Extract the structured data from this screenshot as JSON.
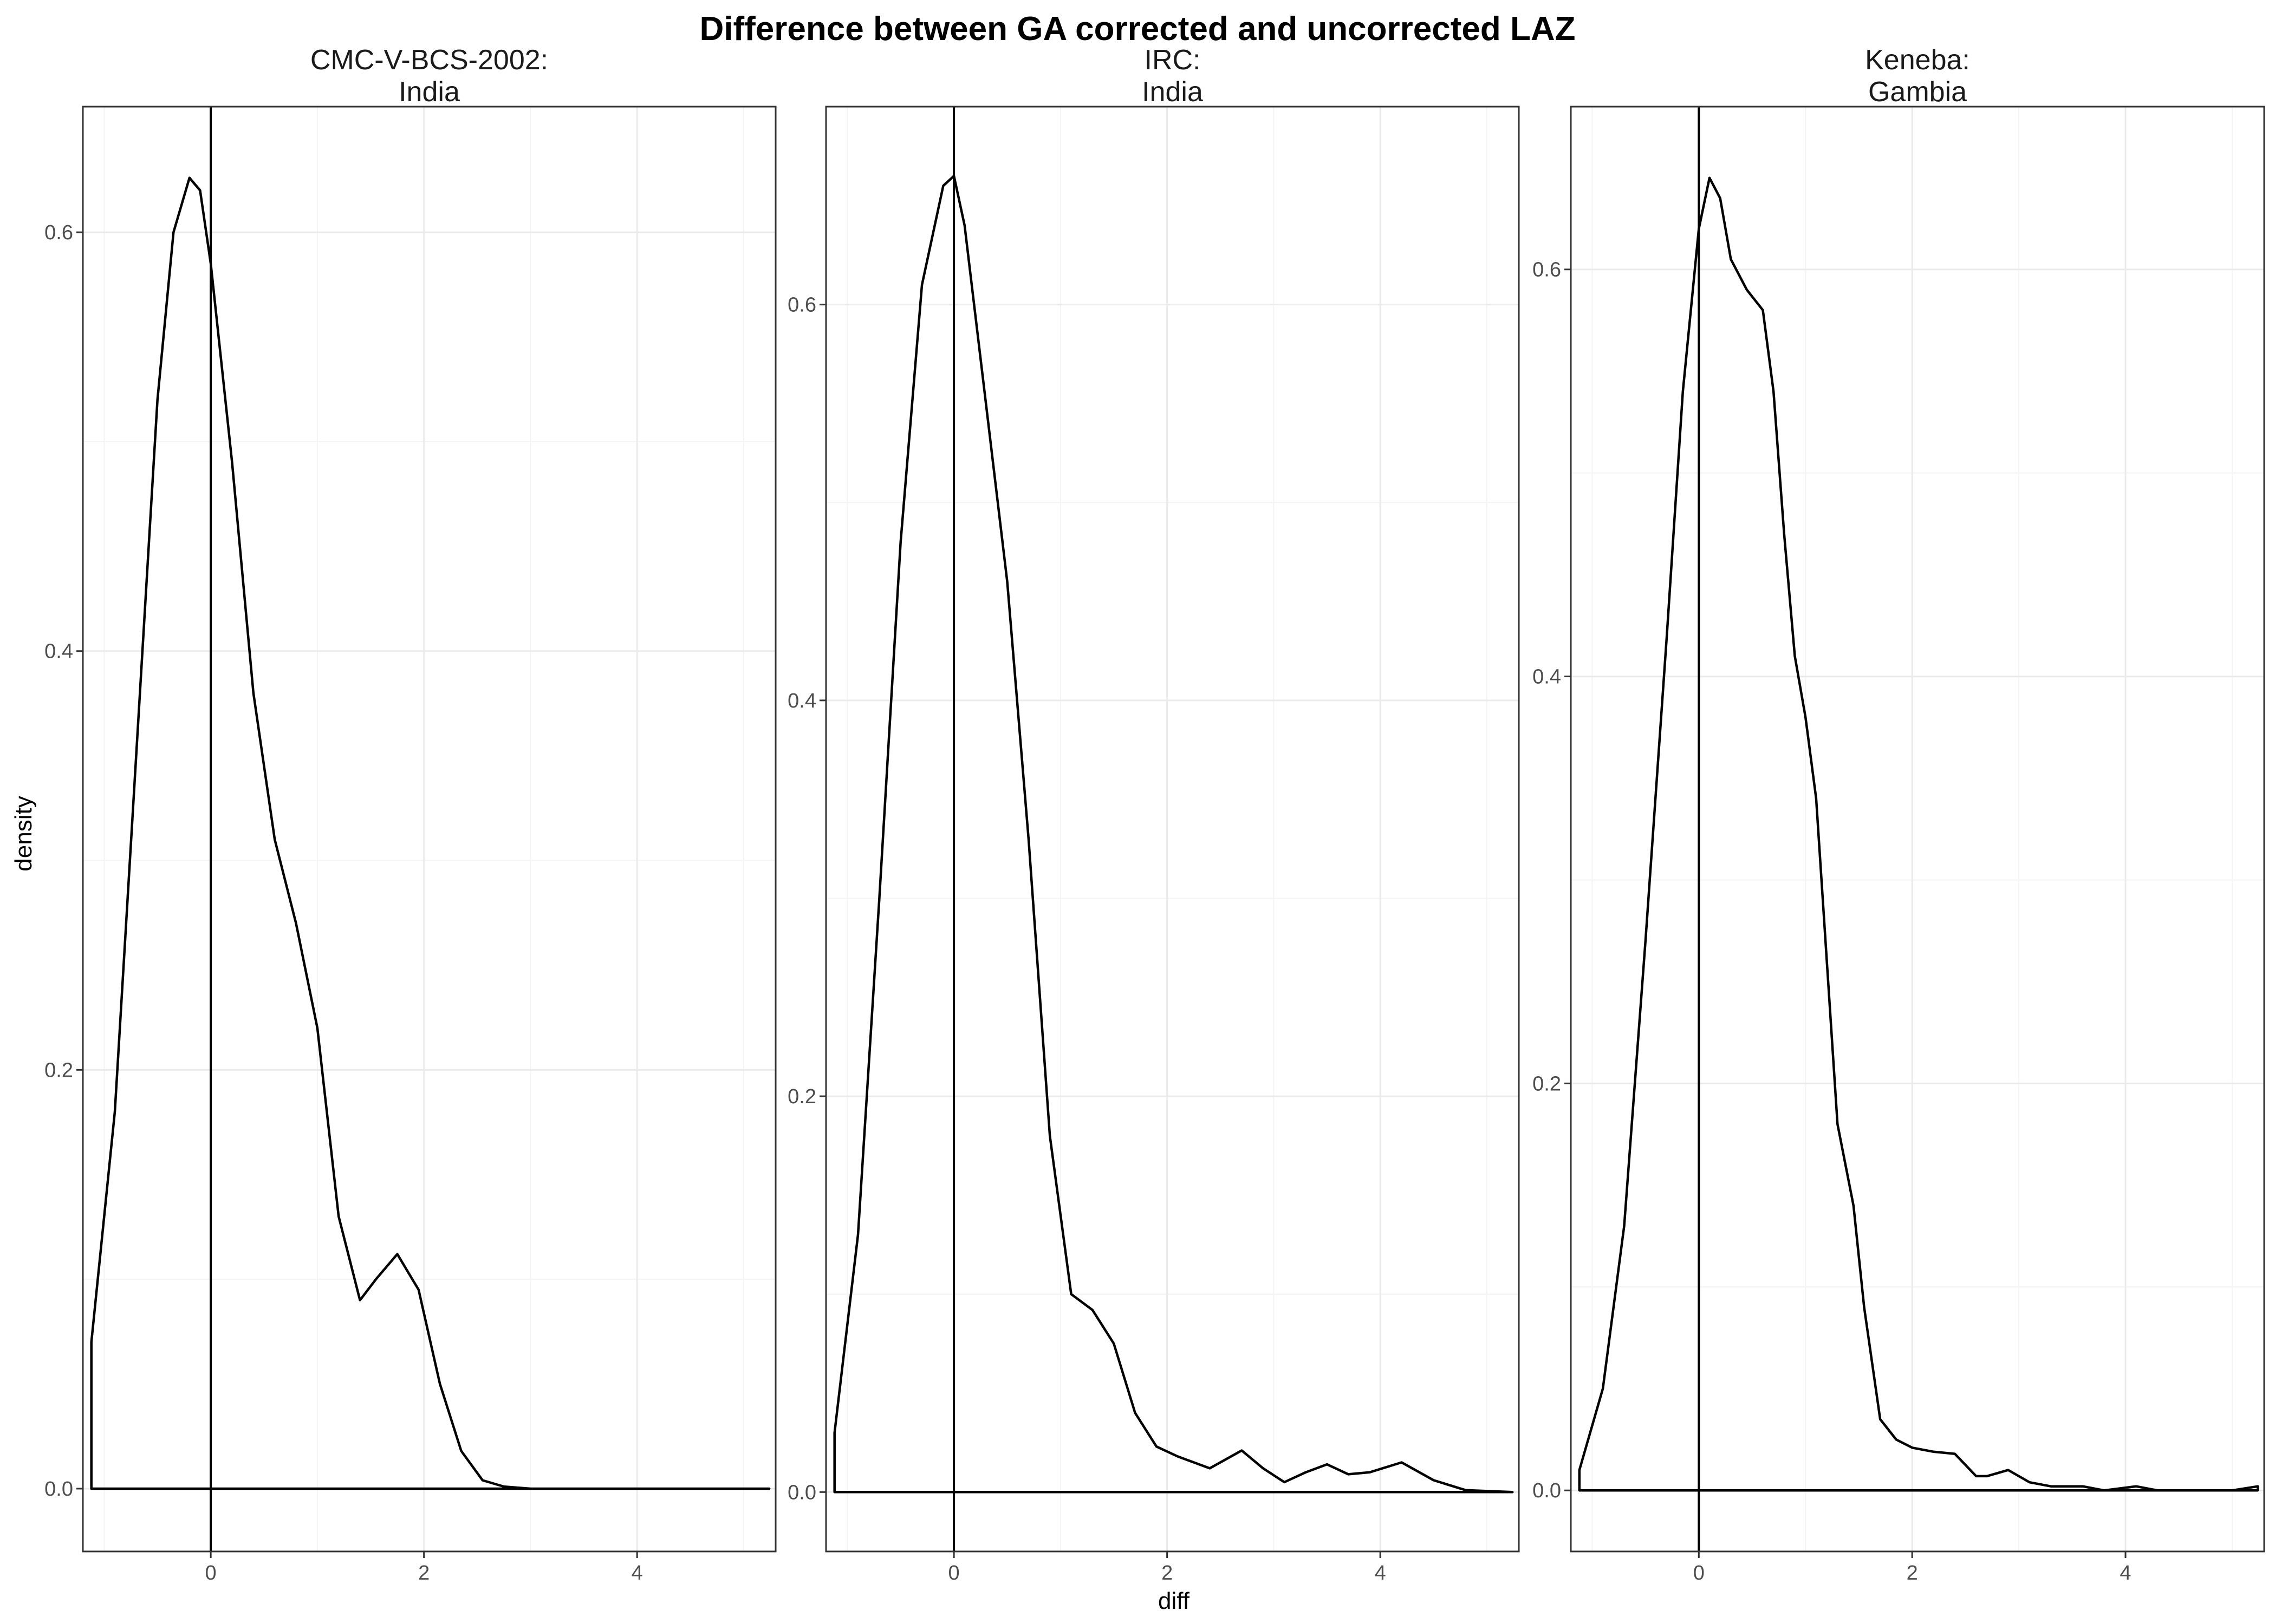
{
  "chart_data": {
    "type": "line",
    "title": "Difference between GA corrected and uncorrected LAZ",
    "xlabel": "diff",
    "ylabel": "density",
    "xlim": [
      -1.2,
      5.3
    ],
    "vline_x": 0,
    "x_ticks": [
      0,
      2,
      4
    ],
    "grid": true,
    "panels": [
      {
        "strip_line1": "CMC-V-BCS-2002:",
        "strip_line2": "India",
        "ylim": [
          -0.03,
          0.66
        ],
        "y_ticks": [
          0.0,
          0.2,
          0.4,
          0.6
        ],
        "y_tick_labels": [
          "0.0",
          "0.2",
          "0.4",
          "0.6"
        ],
        "x": [
          -1.12,
          -1.12,
          -0.9,
          -0.7,
          -0.5,
          -0.35,
          -0.2,
          -0.1,
          0.0,
          0.2,
          0.4,
          0.6,
          0.8,
          1.0,
          1.2,
          1.4,
          1.55,
          1.75,
          1.95,
          2.15,
          2.35,
          2.55,
          2.75,
          3.0,
          4.0,
          5.24
        ],
        "y": [
          0.0,
          0.07,
          0.18,
          0.35,
          0.52,
          0.6,
          0.626,
          0.62,
          0.585,
          0.49,
          0.38,
          0.31,
          0.27,
          0.22,
          0.13,
          0.09,
          0.1,
          0.112,
          0.095,
          0.05,
          0.018,
          0.004,
          0.001,
          0.0,
          0.0,
          0.0
        ]
      },
      {
        "strip_line1": "IRC:",
        "strip_line2": "India",
        "ylim": [
          -0.03,
          0.7
        ],
        "y_ticks": [
          0.0,
          0.2,
          0.4,
          0.6
        ],
        "y_tick_labels": [
          "0.0",
          "0.2",
          "0.4",
          "0.6"
        ],
        "x": [
          -1.12,
          -1.12,
          -0.9,
          -0.7,
          -0.5,
          -0.3,
          -0.1,
          0.0,
          0.1,
          0.3,
          0.5,
          0.7,
          0.9,
          1.1,
          1.3,
          1.5,
          1.7,
          1.9,
          2.1,
          2.4,
          2.7,
          2.9,
          3.1,
          3.3,
          3.5,
          3.7,
          3.9,
          4.2,
          4.5,
          4.8,
          5.24
        ],
        "y": [
          0.0,
          0.03,
          0.13,
          0.3,
          0.48,
          0.61,
          0.66,
          0.665,
          0.64,
          0.55,
          0.46,
          0.33,
          0.18,
          0.1,
          0.092,
          0.075,
          0.04,
          0.023,
          0.018,
          0.012,
          0.021,
          0.012,
          0.005,
          0.01,
          0.014,
          0.009,
          0.01,
          0.015,
          0.006,
          0.001,
          0.0
        ]
      },
      {
        "strip_line1": "Keneba:",
        "strip_line2": "Gambia",
        "ylim": [
          -0.03,
          0.68
        ],
        "y_ticks": [
          0.0,
          0.2,
          0.4,
          0.6
        ],
        "y_tick_labels": [
          "0.0",
          "0.2",
          "0.4",
          "0.6"
        ],
        "x": [
          -1.12,
          -1.12,
          -0.9,
          -0.7,
          -0.5,
          -0.3,
          -0.15,
          0.0,
          0.1,
          0.2,
          0.3,
          0.45,
          0.6,
          0.7,
          0.8,
          0.9,
          1.0,
          1.1,
          1.2,
          1.3,
          1.45,
          1.55,
          1.7,
          1.85,
          2.0,
          2.2,
          2.4,
          2.6,
          2.7,
          2.9,
          3.1,
          3.3,
          3.6,
          3.8,
          4.1,
          4.3,
          5.0,
          5.24,
          5.24
        ],
        "y": [
          0.0,
          0.01,
          0.05,
          0.13,
          0.27,
          0.42,
          0.54,
          0.62,
          0.645,
          0.635,
          0.605,
          0.59,
          0.58,
          0.54,
          0.47,
          0.41,
          0.38,
          0.34,
          0.26,
          0.18,
          0.14,
          0.09,
          0.035,
          0.025,
          0.021,
          0.019,
          0.018,
          0.007,
          0.007,
          0.01,
          0.004,
          0.002,
          0.002,
          0.0,
          0.002,
          0.0,
          0.0,
          0.002,
          0.0
        ]
      }
    ]
  }
}
